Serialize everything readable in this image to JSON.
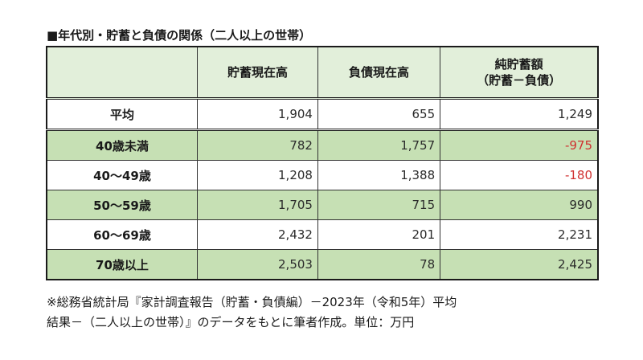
{
  "title": "■年代別・貯蓄と負債の関係（二人以上の世帯）",
  "table": {
    "headers": [
      "",
      "貯蓄現在高",
      "負債現在高",
      "純貯蓄額\n（貯蓄－負債）"
    ],
    "header_col3_line1": "純貯蓄額",
    "header_col3_line2": "（貯蓄－負債）",
    "rows": [
      {
        "label": "平均",
        "savings": "1,904",
        "debt": "655",
        "net": "1,249",
        "net_negative": false,
        "bg": "white"
      },
      {
        "label": "40歳未満",
        "savings": "782",
        "debt": "1,757",
        "net": "-975",
        "net_negative": true,
        "bg": "green"
      },
      {
        "label": "40～49歳",
        "savings": "1,208",
        "debt": "1,388",
        "net": "-180",
        "net_negative": true,
        "bg": "white"
      },
      {
        "label": "50～59歳",
        "savings": "1,705",
        "debt": "715",
        "net": "990",
        "net_negative": false,
        "bg": "green"
      },
      {
        "label": "60～69歳",
        "savings": "2,432",
        "debt": "201",
        "net": "2,231",
        "net_negative": false,
        "bg": "white"
      },
      {
        "label": "70歳以上",
        "savings": "2,503",
        "debt": "78",
        "net": "2,425",
        "net_negative": false,
        "bg": "green"
      }
    ]
  },
  "note": {
    "line1": "※総務省統計局『家計調査報告（貯蓄・負債編）－2023年（令和5年）平均",
    "line2": "結果－（二人以上の世帯）』のデータをもとに筆者作成。単位：万円"
  },
  "colors": {
    "header_bg": "#e2efda",
    "row_green": "#c6e0b4",
    "negative": "#d03030"
  }
}
